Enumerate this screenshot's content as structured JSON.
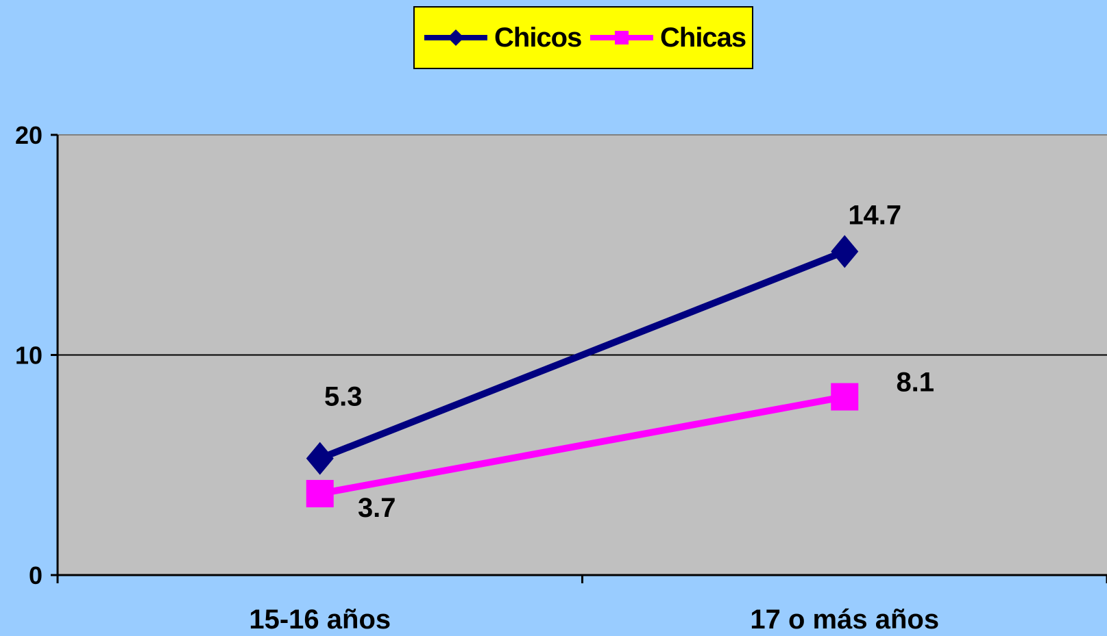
{
  "chart_data": {
    "type": "line",
    "categories": [
      "15-16 años",
      "17 o más años"
    ],
    "series": [
      {
        "name": "Chicos",
        "values": [
          5.3,
          14.7
        ],
        "color": "#000080",
        "marker": "diamond",
        "labels": [
          "5.3",
          "14.7"
        ]
      },
      {
        "name": "Chicas",
        "values": [
          3.7,
          8.1
        ],
        "color": "#ff00ff",
        "marker": "square",
        "labels": [
          "3.7",
          "8.1"
        ]
      }
    ],
    "ylim": [
      0,
      20
    ],
    "yticks": [
      "0",
      "10",
      "20"
    ],
    "gridlines": [
      10,
      20
    ],
    "plot_background": "#c0c0c0",
    "page_background": "#99ccff",
    "legend": {
      "position": "top-center",
      "background": "#ffff00"
    }
  }
}
